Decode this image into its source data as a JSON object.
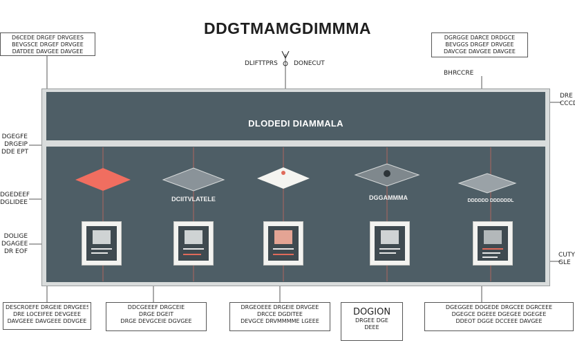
{
  "title": "DDGTMAMGDIMMMA",
  "header_label": {
    "left": "DLIFTTPRS",
    "right": "DONECUT"
  },
  "banner": "DLODEDI DIAMMALA",
  "corner_boxes": {
    "top_left": [
      "D6CEDE DRGEF DRVGEES",
      "BEVGSCE DRGEF DRVGEE",
      "DATDEE DAVGEE DAVGEE"
    ],
    "top_right": [
      "DGRGGE DARCE DRDGCE",
      "BEVGGS DRGEF DRVGEE",
      "DAVCGE DAVGEE DAVGEE"
    ],
    "top_right_sub": "BHRCCRE"
  },
  "side_labels_left": [
    [
      "DGEGFE",
      "DRGEIP",
      "DDE EPT"
    ],
    [
      "DGEDEEF",
      "DGLIDEE"
    ],
    [
      "DOLIGE",
      "DGAGEE",
      "DR EOF"
    ]
  ],
  "side_labels_right": [
    [
      "DRE",
      "CCCD"
    ],
    [
      "CUTY",
      "GLE"
    ]
  ],
  "nodes": [
    {
      "label": "",
      "diamond_color": "#f06e60"
    },
    {
      "label": "DCIITVLATELE",
      "diamond_color": "#8a9399"
    },
    {
      "label": "",
      "diamond_color": "#f4f4f0"
    },
    {
      "label": "DGGAMMMA",
      "diamond_color": "#7f888d"
    },
    {
      "label": "DDDDDD DDDDDDL",
      "diamond_color": "#9aa2a7"
    }
  ],
  "bottom_boxes": [
    [
      "DESCROEFE DRGEIE DRVGEES",
      "DRE LOCEIFEE DEVGEEE",
      "DAVGEEE DAVGEEE DDVGEE"
    ],
    [
      "DDCGEEEF DRGCEIE",
      "DRGE DGEIT",
      "DRGE DEVGCEIE DGVGEE"
    ],
    [
      "DRGEOEEE DRGEIE DRVGEE",
      "DRCCE DGDITEE",
      "DEVGCE DRVMMMME LGEEE"
    ],
    [
      "DOGION",
      "DRGEE DGE",
      "DEEE"
    ],
    [
      "DGEGGEE DOGEDE DRGCEE DGRCEEE",
      "DGEGCE DGEEE DGEGEE DGEGEE",
      "DDEOT DGGE DCCEEE DAVGEE"
    ]
  ]
}
